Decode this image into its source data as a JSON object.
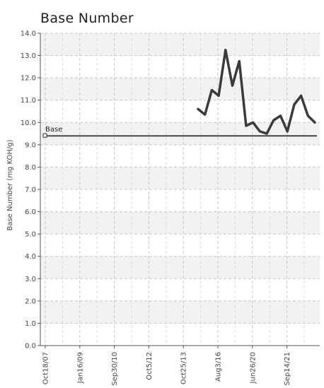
{
  "chart_data": {
    "type": "line",
    "title": "Base Number",
    "xlabel": "",
    "ylabel": "Base Number (mg KOH/g)",
    "ylim": [
      0,
      14
    ],
    "y_ticks": [
      "0.0",
      "1.0",
      "2.0",
      "3.0",
      "4.0",
      "5.0",
      "6.0",
      "7.0",
      "8.0",
      "9.0",
      "10.0",
      "11.0",
      "12.0",
      "13.0",
      "14.0"
    ],
    "x_ticks": [
      "Oct18/07",
      "Jan16/09",
      "Sep30/10",
      "Oct5/12",
      "Oct25/13",
      "Aug3/16",
      "Jun26/20",
      "Sep14/21"
    ],
    "grid": true,
    "series": [
      {
        "values": [
          10.6,
          10.35,
          11.45,
          11.2,
          13.25,
          11.65,
          12.75,
          9.85,
          10.0,
          9.6,
          9.5,
          10.1,
          10.3,
          9.6,
          10.8,
          11.2,
          10.3,
          10.0
        ]
      }
    ],
    "reference_line": {
      "label": "Base",
      "value": 9.4
    },
    "colors": {
      "line": "#3b3b3b",
      "reference": "#444444",
      "band": "#f2f2f2",
      "grid": "#c8c8c8"
    }
  }
}
